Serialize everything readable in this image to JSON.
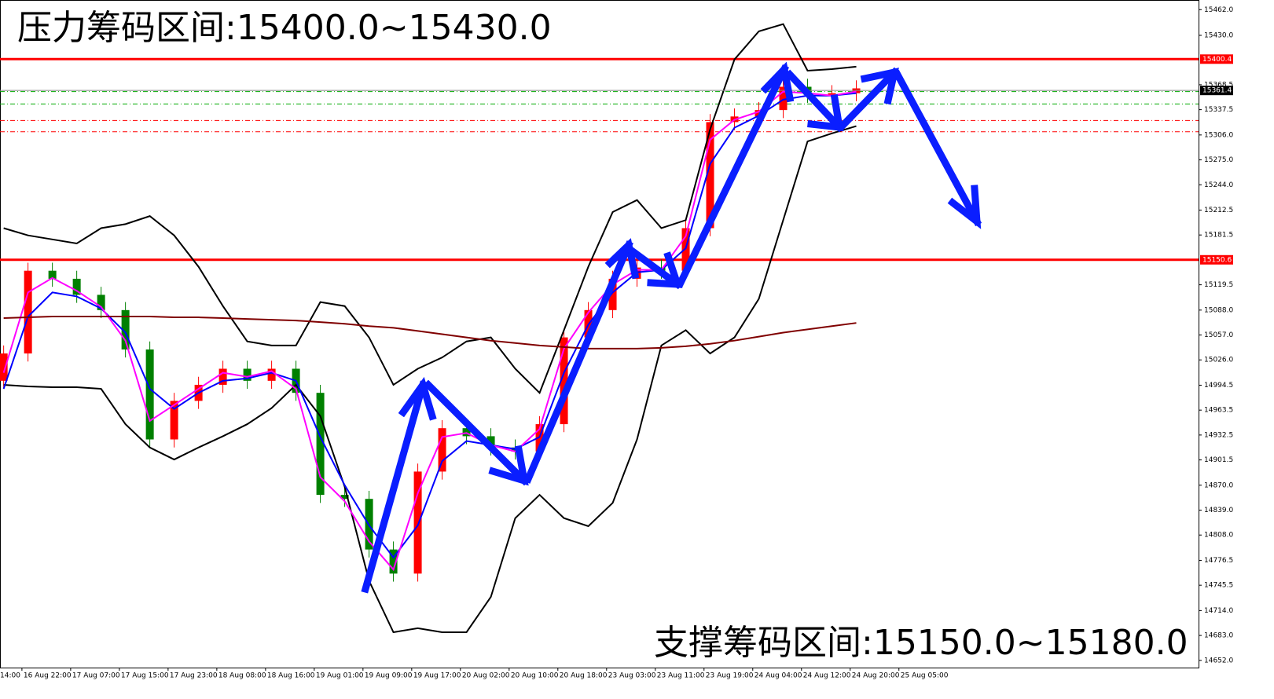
{
  "chart_data": {
    "type": "candlestick",
    "annotations": [
      "压力筹码区间:15400.0~15430.0",
      "支撑筹码区间:15150.0~15180.0"
    ],
    "x": [
      5,
      9,
      13,
      17,
      21,
      25,
      29,
      33,
      37,
      41,
      45,
      49,
      53,
      57,
      61,
      65,
      69,
      73,
      77,
      81,
      85,
      89,
      93,
      97,
      101,
      105,
      109,
      113,
      117,
      121,
      125,
      129,
      133,
      137,
      141,
      145
    ],
    "open": [
      15000,
      15034,
      15137,
      15127,
      15107,
      15088,
      15039,
      14927,
      14975,
      14995,
      15015,
      15000,
      15015,
      14985,
      14858,
      14853,
      14790,
      14760,
      14887,
      14941,
      14931,
      14917,
      14912,
      14946,
      15054,
      15088,
      15127,
      15141,
      15137,
      15190,
      15322,
      15329,
      15337,
      15366,
      15356,
      15358
    ],
    "high": [
      15044,
      15147,
      15147,
      15137,
      15117,
      15098,
      15049,
      14985,
      15005,
      15025,
      15025,
      15025,
      15025,
      14995,
      14868,
      14863,
      14800,
      14897,
      14951,
      14951,
      14941,
      14927,
      14956,
      15064,
      15098,
      15137,
      15151,
      15151,
      15200,
      15332,
      15339,
      15347,
      15376,
      15376,
      15368,
      15374
    ],
    "low": [
      14990,
      15024,
      15117,
      15097,
      15078,
      15029,
      14917,
      14917,
      14965,
      14985,
      14990,
      14990,
      14975,
      14848,
      14843,
      14780,
      14750,
      14750,
      14877,
      14921,
      14907,
      14902,
      14902,
      14936,
      15044,
      15078,
      15117,
      15127,
      15127,
      15180,
      15312,
      15319,
      15327,
      15346,
      15346,
      15348
    ],
    "close": [
      15034,
      15137,
      15127,
      15107,
      15088,
      15039,
      14927,
      14975,
      14995,
      15015,
      15000,
      15015,
      14985,
      14858,
      14853,
      14790,
      14760,
      14887,
      14941,
      14931,
      14917,
      14912,
      14946,
      15054,
      15088,
      15127,
      15141,
      15137,
      15190,
      15322,
      15329,
      15337,
      15366,
      15356,
      15358,
      15364
    ],
    "up_color": "#ff0000",
    "down_color": "#008000",
    "lines": [
      {
        "color": "#000000",
        "values": [
          15190,
          15181,
          15176,
          15171,
          15190,
          15195,
          15205,
          15181,
          15142,
          15093,
          15049,
          15044,
          15044,
          15098,
          15093,
          15054,
          14995,
          15015,
          15029,
          15049,
          15054,
          15015,
          14985,
          15063,
          15142,
          15210,
          15225,
          15190,
          15200,
          15313,
          15400,
          15435,
          15444,
          15386,
          15388,
          15391
        ]
      },
      {
        "color": "#000000",
        "values": [
          14995,
          14993,
          14992,
          14992,
          14990,
          14946,
          14917,
          14902,
          14917,
          14931,
          14946,
          14966,
          14995,
          14956,
          14868,
          14751,
          14687,
          14692,
          14687,
          14687,
          14731,
          14829,
          14858,
          14829,
          14819,
          14848,
          14927,
          15044,
          15063,
          15034,
          15054,
          15102,
          15200,
          15298,
          15308,
          15317
        ]
      },
      {
        "color": "#0000ff",
        "values": [
          14990,
          15080,
          15110,
          15105,
          15090,
          15060,
          14990,
          14965,
          14985,
          15000,
          15003,
          15010,
          15000,
          14930,
          14870,
          14820,
          14780,
          14820,
          14900,
          14925,
          14920,
          14915,
          14930,
          15010,
          15070,
          15110,
          15135,
          15138,
          15165,
          15270,
          15315,
          15330,
          15350,
          15355,
          15355,
          15358
        ]
      },
      {
        "color": "#ff00ff",
        "values": [
          15010,
          15110,
          15128,
          15112,
          15092,
          15050,
          14950,
          14970,
          14990,
          15010,
          15005,
          15012,
          14990,
          14880,
          14850,
          14800,
          14765,
          14860,
          14930,
          14935,
          14920,
          14912,
          14940,
          15040,
          15085,
          15120,
          15138,
          15138,
          15180,
          15300,
          15325,
          15335,
          15360,
          15358,
          15355,
          15360
        ]
      },
      {
        "color": "#800000",
        "values": [
          15078,
          15079,
          15080,
          15080,
          15080,
          15080,
          15080,
          15079,
          15079,
          15078,
          15077,
          15076,
          15075,
          15073,
          15071,
          15068,
          15066,
          15062,
          15058,
          15054,
          15050,
          15047,
          15044,
          15042,
          15040,
          15040,
          15040,
          15041,
          15043,
          15046,
          15050,
          15055,
          15060,
          15064,
          15068,
          15072
        ]
      }
    ],
    "levels": [
      {
        "value": 15400.4,
        "color": "#ff0000"
      },
      {
        "value": 15150.6,
        "color": "#ff0000"
      }
    ],
    "current_price": 15361.4,
    "guides": [
      {
        "value": 15360,
        "color": "#00aa00"
      },
      {
        "value": 15344.6,
        "color": "#00aa00"
      },
      {
        "value": 15324,
        "color": "#ff0000"
      },
      {
        "value": 15310,
        "color": "#ff0000"
      }
    ],
    "xlim": [
      4.4,
      201.2
    ],
    "xticks": [
      {
        "value": 0,
        "label": "14:00"
      },
      {
        "value": 8,
        "label": "16 Aug 22:00"
      },
      {
        "value": 16,
        "label": "17 Aug 07:00"
      },
      {
        "value": 24,
        "label": "17 Aug 15:00"
      },
      {
        "value": 32,
        "label": "17 Aug 23:00"
      },
      {
        "value": 40,
        "label": "18 Aug 08:00"
      },
      {
        "value": 48,
        "label": "18 Aug 16:00"
      },
      {
        "value": 56,
        "label": "19 Aug 01:00"
      },
      {
        "value": 64,
        "label": "19 Aug 09:00"
      },
      {
        "value": 72,
        "label": "19 Aug 17:00"
      },
      {
        "value": 80,
        "label": "20 Aug 02:00"
      },
      {
        "value": 88,
        "label": "20 Aug 10:00"
      },
      {
        "value": 96,
        "label": "20 Aug 18:00"
      },
      {
        "value": 104,
        "label": "23 Aug 03:00"
      },
      {
        "value": 112,
        "label": "23 Aug 11:00"
      },
      {
        "value": 120,
        "label": "23 Aug 19:00"
      },
      {
        "value": 128,
        "label": "24 Aug 04:00"
      },
      {
        "value": 136,
        "label": "24 Aug 12:00"
      },
      {
        "value": 144,
        "label": "24 Aug 20:00"
      },
      {
        "value": 152,
        "label": "25 Aug 05:00"
      }
    ],
    "ylim": [
      14643,
      15474
    ],
    "yticks": [
      {
        "value": 15462,
        "label": "15462.0"
      },
      {
        "value": 15430,
        "label": "15430.0"
      },
      {
        "value": 15368.5,
        "label": "15368.5"
      },
      {
        "value": 15337.5,
        "label": "15337.5"
      },
      {
        "value": 15306,
        "label": "15306.0"
      },
      {
        "value": 15275,
        "label": "15275.0"
      },
      {
        "value": 15244,
        "label": "15244.0"
      },
      {
        "value": 15212.5,
        "label": "15212.5"
      },
      {
        "value": 15181.5,
        "label": "15181.5"
      },
      {
        "value": 15119.5,
        "label": "15119.5"
      },
      {
        "value": 15088,
        "label": "15088.0"
      },
      {
        "value": 15057,
        "label": "15057.0"
      },
      {
        "value": 15026,
        "label": "15026.0"
      },
      {
        "value": 14994.5,
        "label": "14994.5"
      },
      {
        "value": 14963.5,
        "label": "14963.5"
      },
      {
        "value": 14932.5,
        "label": "14932.5"
      },
      {
        "value": 14901.5,
        "label": "14901.5"
      },
      {
        "value": 14870,
        "label": "14870.0"
      },
      {
        "value": 14839,
        "label": "14839.0"
      },
      {
        "value": 14808,
        "label": "14808.0"
      },
      {
        "value": 14776.5,
        "label": "14776.5"
      },
      {
        "value": 14745.5,
        "label": "14745.5"
      },
      {
        "value": 14714,
        "label": "14714.0"
      },
      {
        "value": 14683,
        "label": "14683.0"
      },
      {
        "value": 14652,
        "label": "14652.0"
      }
    ]
  }
}
